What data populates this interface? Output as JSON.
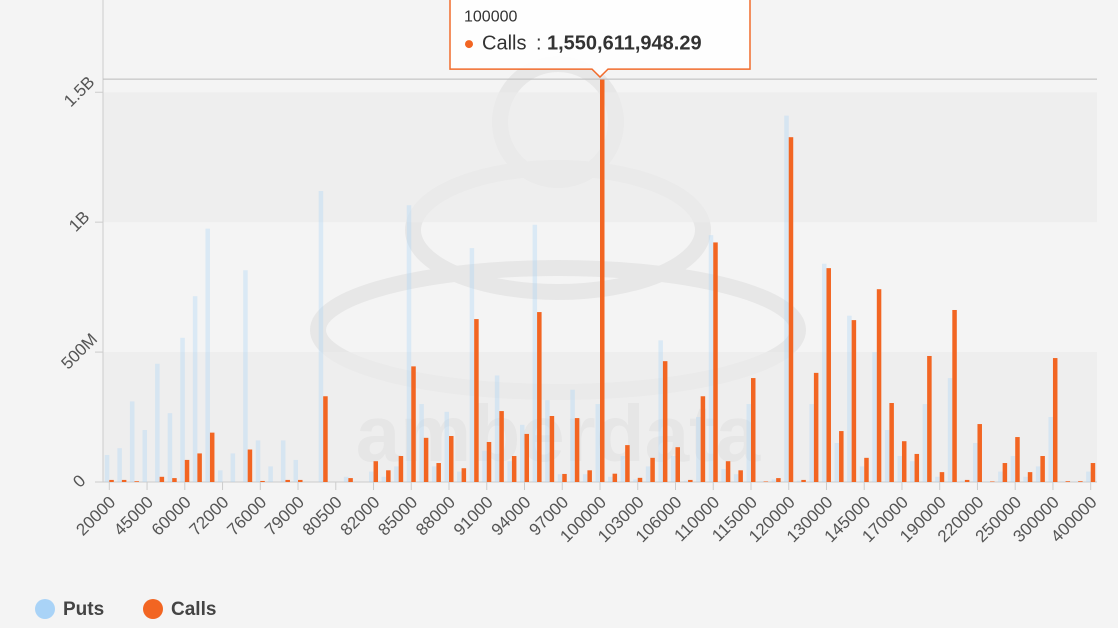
{
  "chart_data": {
    "type": "bar",
    "categories": [
      "20000",
      null,
      null,
      "45000",
      null,
      null,
      "60000",
      null,
      null,
      "72000",
      null,
      null,
      "76000",
      null,
      null,
      "79000",
      null,
      null,
      "80500",
      null,
      null,
      "82000",
      null,
      null,
      "85000",
      null,
      null,
      "88000",
      null,
      null,
      "91000",
      null,
      null,
      "94000",
      null,
      null,
      "97000",
      null,
      null,
      "100000",
      null,
      null,
      "103000",
      null,
      null,
      "106000",
      null,
      null,
      "110000",
      null,
      null,
      "115000",
      null,
      null,
      "120000",
      null,
      null,
      "130000",
      null,
      null,
      "145000",
      null,
      null,
      "170000",
      null,
      null,
      "190000",
      null,
      null,
      "220000",
      null,
      null,
      "250000",
      null,
      null,
      "300000",
      null,
      null,
      "400000"
    ],
    "series": [
      {
        "name": "Puts",
        "color": "#a9d3f7",
        "values": [
          104000000,
          130000000,
          310000000,
          200000000,
          455000000,
          265000000,
          555000000,
          715000000,
          975000000,
          45000000,
          110000000,
          815000000,
          160000000,
          60000000,
          160000000,
          85000000,
          0,
          1120000000,
          0,
          20000000,
          0,
          40000000,
          20000000,
          60000000,
          1065000000,
          300000000,
          60000000,
          270000000,
          40000000,
          900000000,
          120000000,
          410000000,
          80000000,
          220000000,
          990000000,
          315000000,
          30000000,
          355000000,
          30000000,
          300000000,
          20000000,
          100000000,
          10000000,
          60000000,
          545000000,
          100000000,
          5000000,
          250000000,
          950000000,
          50000000,
          30000000,
          300000000,
          2000000,
          10000000,
          1410000000,
          5000000,
          300000000,
          840000000,
          150000000,
          640000000,
          60000000,
          500000000,
          200000000,
          100000000,
          80000000,
          300000000,
          20000000,
          400000000,
          5000000,
          150000000,
          2000000,
          40000000,
          100000000,
          20000000,
          60000000,
          250000000,
          2000000,
          2000000,
          40000000
        ]
      },
      {
        "name": "Calls",
        "color": "#f26522",
        "values": [
          8000000,
          8000000,
          3000000,
          0,
          20000000,
          15000000,
          85000000,
          110000000,
          190000000,
          0,
          0,
          125000000,
          4000000,
          0,
          8000000,
          8000000,
          0,
          330000000,
          0,
          15000000,
          0,
          80000000,
          45000000,
          100000000,
          445000000,
          170000000,
          73000000,
          177000000,
          53000000,
          627000000,
          154000000,
          273000000,
          100000000,
          185000000,
          654000000,
          254000000,
          31000000,
          246000000,
          45000000,
          1550611948.29,
          32000000,
          142000000,
          16000000,
          93000000,
          465000000,
          134000000,
          8000000,
          330000000,
          922000000,
          80000000,
          45000000,
          400000000,
          2000000,
          15000000,
          1327000000,
          8000000,
          420000000,
          823000000,
          196000000,
          623000000,
          93000000,
          742000000,
          304000000,
          157000000,
          108000000,
          485000000,
          38000000,
          662000000,
          8000000,
          223000000,
          2000000,
          73000000,
          173000000,
          38000000,
          100000000,
          477000000,
          3000000,
          3000000,
          73000000
        ]
      }
    ],
    "ylim": [
      0,
      1855000000
    ],
    "yticks": [
      0,
      {
        "value": 500000000,
        "label": "500M"
      },
      {
        "value": 1000000000,
        "label": "1B"
      },
      {
        "value": 1500000000,
        "label": "1.5B"
      }
    ],
    "grid": true,
    "legend": "bottom-left",
    "tooltip": {
      "category": "100000",
      "series": "Calls",
      "value": "1,550,611,948.29"
    },
    "watermark": "amberdata"
  }
}
